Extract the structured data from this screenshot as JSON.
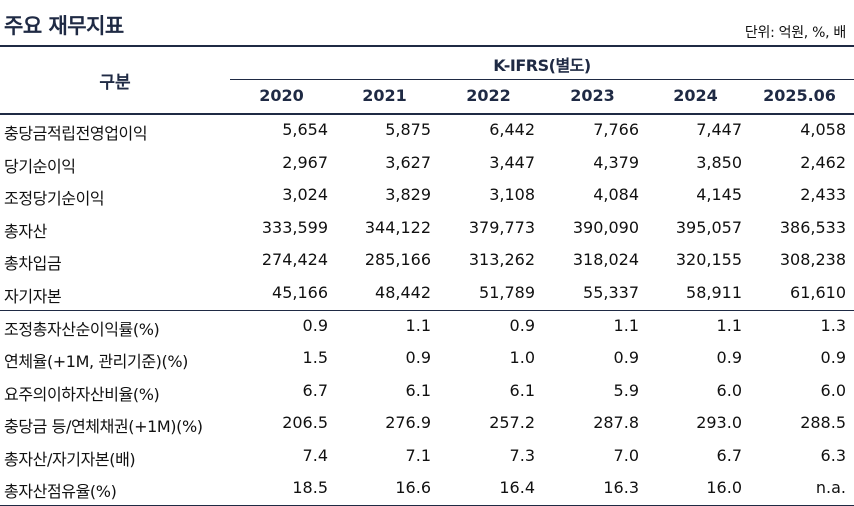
{
  "title": "주요 재무지표",
  "unit": "단위: 억원, %, 배",
  "header": {
    "gubun": "구분",
    "group": "K-IFRS(별도)",
    "years": [
      "2020",
      "2021",
      "2022",
      "2023",
      "2024",
      "2025.06"
    ]
  },
  "rows": [
    {
      "label": "충당금적립전영업이익",
      "values": [
        "5,654",
        "5,875",
        "6,442",
        "7,766",
        "7,447",
        "4,058"
      ]
    },
    {
      "label": "당기순이익",
      "values": [
        "2,967",
        "3,627",
        "3,447",
        "4,379",
        "3,850",
        "2,462"
      ]
    },
    {
      "label": "조정당기순이익",
      "values": [
        "3,024",
        "3,829",
        "3,108",
        "4,084",
        "4,145",
        "2,433"
      ]
    },
    {
      "label": "총자산",
      "values": [
        "333,599",
        "344,122",
        "379,773",
        "390,090",
        "395,057",
        "386,533"
      ]
    },
    {
      "label": "총차입금",
      "values": [
        "274,424",
        "285,166",
        "313,262",
        "318,024",
        "320,155",
        "308,238"
      ]
    },
    {
      "label": "자기자본",
      "values": [
        "45,166",
        "48,442",
        "51,789",
        "55,337",
        "58,911",
        "61,610"
      ]
    },
    {
      "label": "조정총자산순이익률(%)",
      "values": [
        "0.9",
        "1.1",
        "0.9",
        "1.1",
        "1.1",
        "1.3"
      ]
    },
    {
      "label": "연체율(+1M, 관리기준)(%)",
      "values": [
        "1.5",
        "0.9",
        "1.0",
        "0.9",
        "0.9",
        "0.9"
      ]
    },
    {
      "label": "요주의이하자산비율(%)",
      "values": [
        "6.7",
        "6.1",
        "6.1",
        "5.9",
        "6.0",
        "6.0"
      ]
    },
    {
      "label": "충당금 등/연체채권(+1M)(%)",
      "values": [
        "206.5",
        "276.9",
        "257.2",
        "287.8",
        "293.0",
        "288.5"
      ]
    },
    {
      "label": "총자산/자기자본(배)",
      "values": [
        "7.4",
        "7.1",
        "7.3",
        "7.0",
        "6.7",
        "6.3"
      ]
    },
    {
      "label": "총자산점유율(%)",
      "values": [
        "18.5",
        "16.6",
        "16.4",
        "16.3",
        "16.0",
        "n.a."
      ]
    }
  ]
}
